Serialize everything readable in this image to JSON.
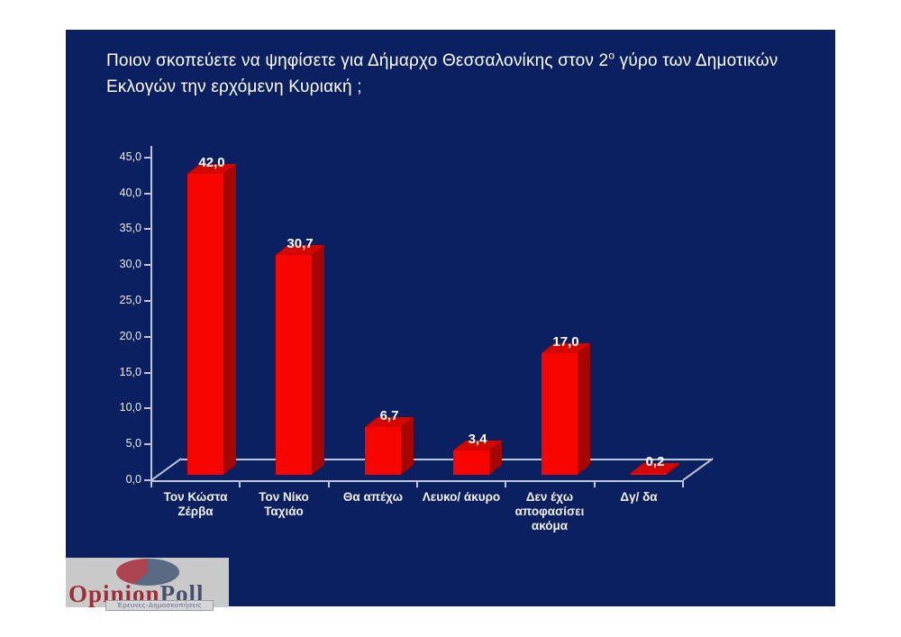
{
  "slide": {
    "title": {
      "line1_pre": "Ποιον σκοπεύετε να ψηφίσετε για Δήμαρχο Θεσσαλονίκης στον 2",
      "sup": "ο",
      "line1_post": " γύρο των Δημοτικών",
      "line2": "Εκλογών την ερχόμενη Κυριακή ;"
    },
    "background_color": "#0a2061"
  },
  "chart_data": {
    "type": "bar",
    "style": "3d-column",
    "categories": [
      "Τον Κώστα\nΖέρβα",
      "Τον Νίκο\nΤαχιάο",
      "Θα απέχω",
      "Λευκο/ άκυρο",
      "Δεν έχω\nαποφασίσει\nακόμα",
      "Δγ/ δα"
    ],
    "values": [
      42.0,
      30.7,
      6.7,
      3.4,
      17.0,
      0.2
    ],
    "value_labels": [
      "42,0",
      "30,7",
      "6,7",
      "3,4",
      "17,0",
      "0,2"
    ],
    "y_ticks": [
      "0,0",
      "5,0",
      "10,0",
      "15,0",
      "20,0",
      "25,0",
      "30,0",
      "35,0",
      "40,0",
      "45,0"
    ],
    "ylim": [
      0,
      45
    ],
    "y_step": 5,
    "grid": "floor-back-line-only",
    "legend": "none",
    "colors": {
      "bar_front": "#f90500",
      "bar_top": "#d40600",
      "bar_side": "#a60500",
      "axis_line": "#bcc6d6",
      "tick_label": "#f2f0ec",
      "value_label": "#ffffff",
      "category_label": "#f2f0ec"
    }
  },
  "logo": {
    "brand_part1": "Opinion",
    "brand_part2": "Poll",
    "tagline": "Έρευνες-Δημοσκοπήσεις",
    "pie_main_color": "#5a6a85",
    "pie_slice_color": "#ae4450"
  }
}
